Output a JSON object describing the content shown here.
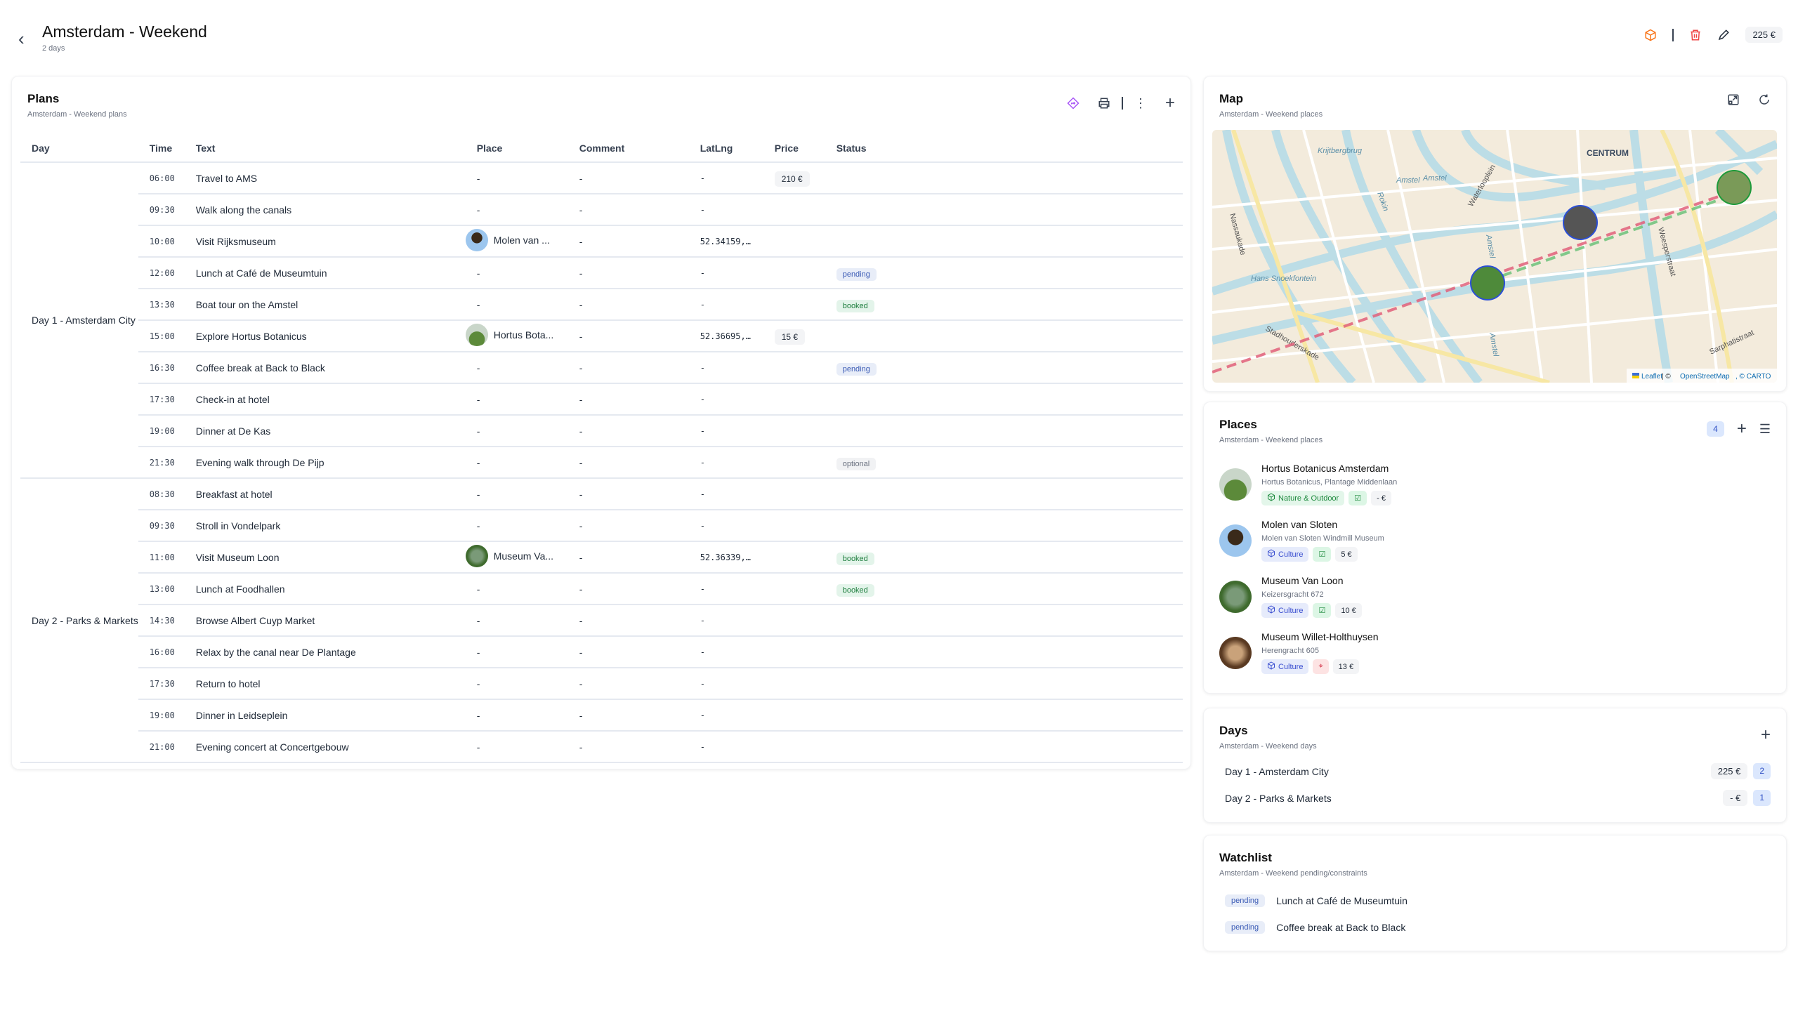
{
  "header": {
    "title": "Amsterdam - Weekend",
    "subtitle": "2 days",
    "total": "225 €"
  },
  "plans": {
    "title": "Plans",
    "subtitle": "Amsterdam - Weekend plans",
    "columns": [
      "Day",
      "Time",
      "Text",
      "Place",
      "Comment",
      "LatLng",
      "Price",
      "Status"
    ],
    "days": [
      {
        "label": "Day 1 - Amsterdam City",
        "rows": 10
      },
      {
        "label": "Day 2 - Parks & Markets",
        "rows": 9
      }
    ],
    "rows": [
      {
        "time": "06:00",
        "text": "Travel to AMS",
        "place": "-",
        "comment": "-",
        "latlng": "-",
        "price": "210 €",
        "status": ""
      },
      {
        "time": "09:30",
        "text": "Walk along the canals",
        "place": "-",
        "comment": "-",
        "latlng": "-",
        "price": "",
        "status": ""
      },
      {
        "time": "10:00",
        "text": "Visit Rijksmuseum",
        "place": "Molen van ...",
        "img": "windmill",
        "comment": "-",
        "latlng": "52.34159,…",
        "price": "",
        "status": ""
      },
      {
        "time": "12:00",
        "text": "Lunch at Café de Museumtuin",
        "place": "-",
        "comment": "-",
        "latlng": "-",
        "price": "",
        "status": "pending"
      },
      {
        "time": "13:30",
        "text": "Boat tour on the Amstel",
        "place": "-",
        "comment": "-",
        "latlng": "-",
        "price": "",
        "status": "booked"
      },
      {
        "time": "15:00",
        "text": "Explore Hortus Botanicus",
        "place": "Hortus Bota...",
        "img": "garden",
        "comment": "-",
        "latlng": "52.36695,…",
        "price": "15 €",
        "status": ""
      },
      {
        "time": "16:30",
        "text": "Coffee break at Back to Black",
        "place": "-",
        "comment": "-",
        "latlng": "-",
        "price": "",
        "status": "pending"
      },
      {
        "time": "17:30",
        "text": "Check-in at hotel",
        "place": "-",
        "comment": "-",
        "latlng": "-",
        "price": "",
        "status": ""
      },
      {
        "time": "19:00",
        "text": "Dinner at De Kas",
        "place": "-",
        "comment": "-",
        "latlng": "-",
        "price": "",
        "status": ""
      },
      {
        "time": "21:30",
        "text": "Evening walk through De Pijp",
        "place": "-",
        "comment": "-",
        "latlng": "-",
        "price": "",
        "status": "optional"
      },
      {
        "time": "08:30",
        "text": "Breakfast at hotel",
        "place": "-",
        "comment": "-",
        "latlng": "-",
        "price": "",
        "status": ""
      },
      {
        "time": "09:30",
        "text": "Stroll in Vondelpark",
        "place": "-",
        "comment": "-",
        "latlng": "-",
        "price": "",
        "status": ""
      },
      {
        "time": "11:00",
        "text": "Visit Museum Loon",
        "place": "Museum Va...",
        "img": "museum",
        "comment": "-",
        "latlng": "52.36339,…",
        "price": "",
        "status": "booked"
      },
      {
        "time": "13:00",
        "text": "Lunch at Foodhallen",
        "place": "-",
        "comment": "-",
        "latlng": "-",
        "price": "",
        "status": "booked"
      },
      {
        "time": "14:30",
        "text": "Browse Albert Cuyp Market",
        "place": "-",
        "comment": "-",
        "latlng": "-",
        "price": "",
        "status": ""
      },
      {
        "time": "16:00",
        "text": "Relax by the canal near De Plantage",
        "place": "-",
        "comment": "-",
        "latlng": "-",
        "price": "",
        "status": ""
      },
      {
        "time": "17:30",
        "text": "Return to hotel",
        "place": "-",
        "comment": "-",
        "latlng": "-",
        "price": "",
        "status": ""
      },
      {
        "time": "19:00",
        "text": "Dinner in Leidseplein",
        "place": "-",
        "comment": "-",
        "latlng": "-",
        "price": "",
        "status": ""
      },
      {
        "time": "21:00",
        "text": "Evening concert at Concertgebouw",
        "place": "-",
        "comment": "-",
        "latlng": "-",
        "price": "",
        "status": ""
      }
    ]
  },
  "map": {
    "title": "Map",
    "subtitle": "Amsterdam - Weekend places",
    "labels": {
      "centrum": "CENTRUM",
      "krijtbergbrug": "Krijtbergbrug",
      "rokin": "Rokin",
      "amstel1": "Amstel",
      "amstel2": "Amstel",
      "waterlooplein": "Waterlooplein",
      "nassaukade": "Nassaukade",
      "hans": "Hans Snoekfontein",
      "stadhouderskade": "Stadhouderskade",
      "weesperstraat": "Weesperstraat",
      "sarphatistraat": "Sarphatistraat",
      "amstel3": "Amstel",
      "amstel4": "Amstel"
    },
    "attribution": {
      "leaflet": "Leaflet",
      "sep": " | © ",
      "osm": "OpenStreetMap",
      "carto": ", © CARTO"
    }
  },
  "places": {
    "title": "Places",
    "subtitle": "Amsterdam - Weekend places",
    "count": "4",
    "items": [
      {
        "name": "Hortus Botanicus Amsterdam",
        "address": "Hortus Botanicus, Plantage Middenlaan",
        "category": "Nature & Outdoor",
        "cat": "nature",
        "state": "check",
        "price": "- €"
      },
      {
        "name": "Molen van Sloten",
        "address": "Molen van Sloten Windmill Museum",
        "category": "Culture",
        "cat": "culture",
        "state": "check",
        "price": "5 €"
      },
      {
        "name": "Museum Van Loon",
        "address": "Keizersgracht 672",
        "category": "Culture",
        "cat": "culture",
        "state": "check",
        "price": "10 €"
      },
      {
        "name": "Museum Willet-Holthuysen",
        "address": "Herengracht 605",
        "category": "Culture",
        "cat": "culture",
        "state": "pin",
        "price": "13 €"
      }
    ]
  },
  "days": {
    "title": "Days",
    "subtitle": "Amsterdam - Weekend days",
    "items": [
      {
        "label": "Day 1 - Amsterdam City",
        "price": "225 €",
        "count": "2"
      },
      {
        "label": "Day 2 - Parks & Markets",
        "price": "- €",
        "count": "1"
      }
    ]
  },
  "watchlist": {
    "title": "Watchlist",
    "subtitle": "Amsterdam - Weekend pending/constraints",
    "items": [
      {
        "status": "pending",
        "text": "Lunch at Café de Museumtuin"
      },
      {
        "status": "pending",
        "text": "Coffee break at Back to Black"
      }
    ]
  },
  "colors": {
    "accent": "#a855f7",
    "delete": "#ef4444",
    "box": "#f97316",
    "pending": "#3b5bb5",
    "booked": "#1e7e3e"
  }
}
